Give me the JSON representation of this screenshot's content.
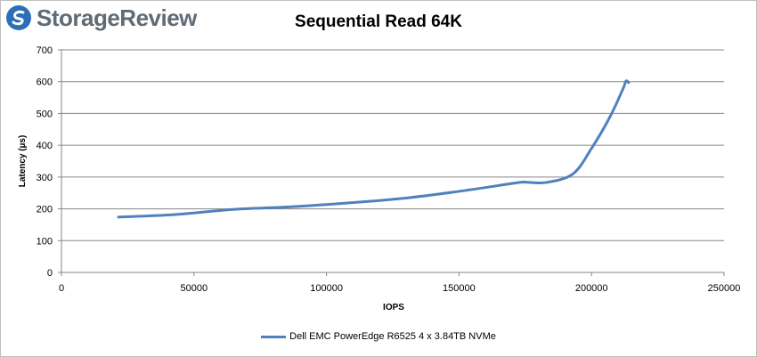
{
  "brand": {
    "name": "StorageReview",
    "logo_icon": "storagereview-logo-icon",
    "accent_color": "#2b6fb6"
  },
  "chart_data": {
    "type": "line",
    "title": "Sequential Read 64K",
    "xlabel": "IOPS",
    "ylabel": "Latency (µs)",
    "xlim": [
      0,
      250000
    ],
    "ylim": [
      0,
      700
    ],
    "xticks": [
      "0",
      "50000",
      "100000",
      "150000",
      "200000",
      "250000"
    ],
    "yticks": [
      "0",
      "100",
      "200",
      "300",
      "400",
      "500",
      "600",
      "700"
    ],
    "grid": "horizontal",
    "legend_position": "bottom",
    "series": [
      {
        "name": "Dell EMC PowerEdge R6525 4 x 3.84TB NVMe",
        "color": "#4f81bd",
        "x": [
          21500,
          43000,
          64500,
          86000,
          107500,
          129000,
          150000,
          172000,
          175000,
          183000,
          193000,
          200000,
          207000,
          212000,
          213000,
          214000
        ],
        "y": [
          174,
          182,
          198,
          206,
          218,
          233,
          255,
          282,
          284,
          283,
          310,
          390,
          490,
          580,
          602,
          597
        ]
      }
    ]
  }
}
